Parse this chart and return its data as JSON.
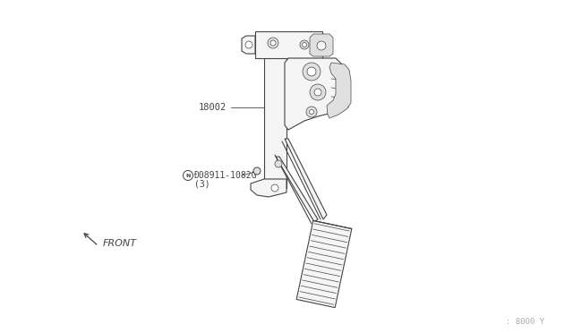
{
  "bg_color": "#ffffff",
  "line_color": "#444444",
  "label_color": "#444444",
  "part_label_1": "18002",
  "part_label_2": "Ð08911-1082G",
  "part_label_2b": "(3)",
  "front_label": "FRONT",
  "ref_label": ": 8000 Y",
  "fig_width": 6.4,
  "fig_height": 3.72,
  "dpi": 100
}
